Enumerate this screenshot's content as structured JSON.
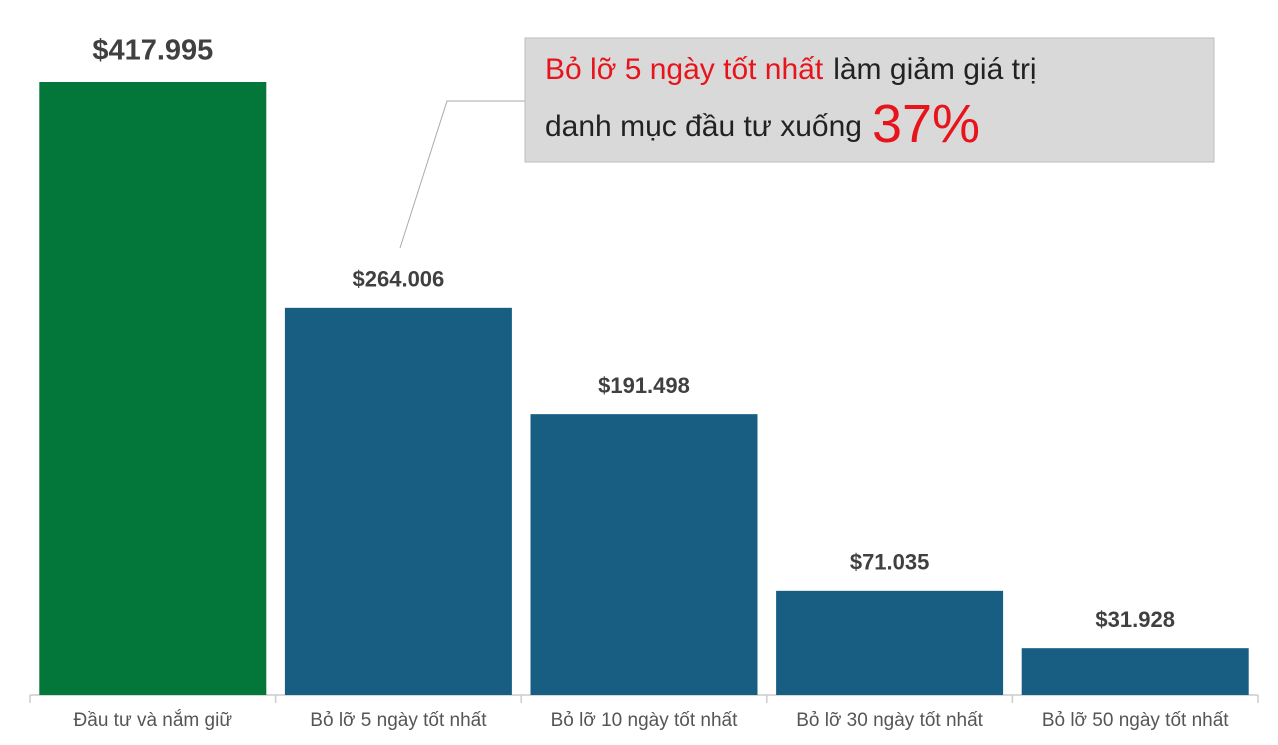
{
  "chart_data": {
    "type": "bar",
    "categories": [
      "Đầu tư và nắm giữ",
      "Bỏ lỡ 5 ngày tốt nhất",
      "Bỏ lỡ 10 ngày tốt nhất",
      "Bỏ lỡ 30 ngày tốt nhất",
      "Bỏ lỡ 50 ngày tốt nhất"
    ],
    "values": [
      417995,
      264006,
      191498,
      71035,
      31928
    ],
    "value_labels": [
      "$417.995",
      "$264.006",
      "$191.498",
      "$71.035",
      "$31.928"
    ],
    "colors": [
      "#037639",
      "#175e82",
      "#175e82",
      "#175e82",
      "#175e82"
    ],
    "annotation": {
      "highlight": "Bỏ lỡ 5 ngày tốt nhất",
      "text_1": "làm giảm giá trị",
      "text_2": "danh mục đầu tư xuống",
      "figure": "37%",
      "highlight_color": "#e8141b"
    }
  }
}
